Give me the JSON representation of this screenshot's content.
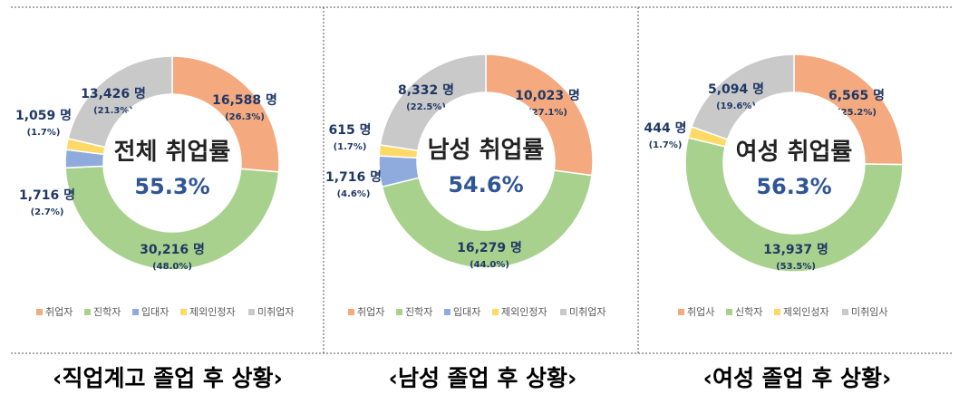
{
  "chart_data": [
    {
      "type": "pie",
      "caption": "‹직업계고 졸업 후 상황›",
      "center_title": "전체 취업률",
      "center_value": "55.3%",
      "slices": [
        {
          "name": "취업자",
          "value": 16588,
          "value_label": "16,588 명",
          "pct_label": "(26.3%)",
          "color": "#f4a97f"
        },
        {
          "name": "진학자",
          "value": 30216,
          "value_label": "30,216 명",
          "pct_label": "(48.0%)",
          "color": "#a9d18e"
        },
        {
          "name": "입대자",
          "value": 1716,
          "value_label": "1,716 명",
          "pct_label": "(2.7%)",
          "color": "#8faadc"
        },
        {
          "name": "제외인정자",
          "value": 1059,
          "value_label": "1,059 명",
          "pct_label": "(1.7%)",
          "color": "#ffd966"
        },
        {
          "name": "미취업자",
          "value": 13426,
          "value_label": "13,426 명",
          "pct_label": "(21.3%)",
          "color": "#c9c9c9"
        }
      ],
      "legend": [
        "취업자",
        "진학자",
        "입대자",
        "제외인정자",
        "미취업자"
      ],
      "legend_placement": "bottom"
    },
    {
      "type": "pie",
      "caption": "‹남성 졸업 후 상황›",
      "center_title": "남성 취업률",
      "center_value": "54.6%",
      "slices": [
        {
          "name": "취업자",
          "value": 10023,
          "value_label": "10,023 명",
          "pct_label": "(27.1%)",
          "color": "#f4a97f"
        },
        {
          "name": "진학자",
          "value": 16279,
          "value_label": "16,279 명",
          "pct_label": "(44.0%)",
          "color": "#a9d18e"
        },
        {
          "name": "입대자",
          "value": 1716,
          "value_label": "1,716 명",
          "pct_label": "(4.6%)",
          "color": "#8faadc"
        },
        {
          "name": "제외인정자",
          "value": 615,
          "value_label": "615 명",
          "pct_label": "(1.7%)",
          "color": "#ffd966"
        },
        {
          "name": "미취업자",
          "value": 8332,
          "value_label": "8,332 명",
          "pct_label": "(22.5%)",
          "color": "#c9c9c9"
        }
      ],
      "legend": [
        "취업자",
        "진학자",
        "입대자",
        "제외인정자",
        "미취업자"
      ],
      "legend_placement": "bottom"
    },
    {
      "type": "pie",
      "caption": "‹여성 졸업 후 상황›",
      "center_title": "여성 취업률",
      "center_value": "56.3%",
      "slices": [
        {
          "name": "취업사",
          "value": 6565,
          "value_label": "6,565 명",
          "pct_label": "(25.2%)",
          "color": "#f4a97f"
        },
        {
          "name": "신학자",
          "value": 13937,
          "value_label": "13,937 명",
          "pct_label": "(53.5%)",
          "color": "#a9d18e"
        },
        {
          "name": "제외인성자",
          "value": 444,
          "value_label": "444 명",
          "pct_label": "(1.7%)",
          "color": "#ffd966"
        },
        {
          "name": "미취임사",
          "value": 5094,
          "value_label": "5,094 명",
          "pct_label": "(19.6%)",
          "color": "#c9c9c9"
        }
      ],
      "legend": [
        "취업사",
        "신학자",
        "제외인성자",
        "미취임사"
      ],
      "legend_placement": "bottom"
    }
  ],
  "label_colors": {
    "primary": "#1f3864",
    "accent": "#2f5597",
    "muted": "#595959"
  }
}
